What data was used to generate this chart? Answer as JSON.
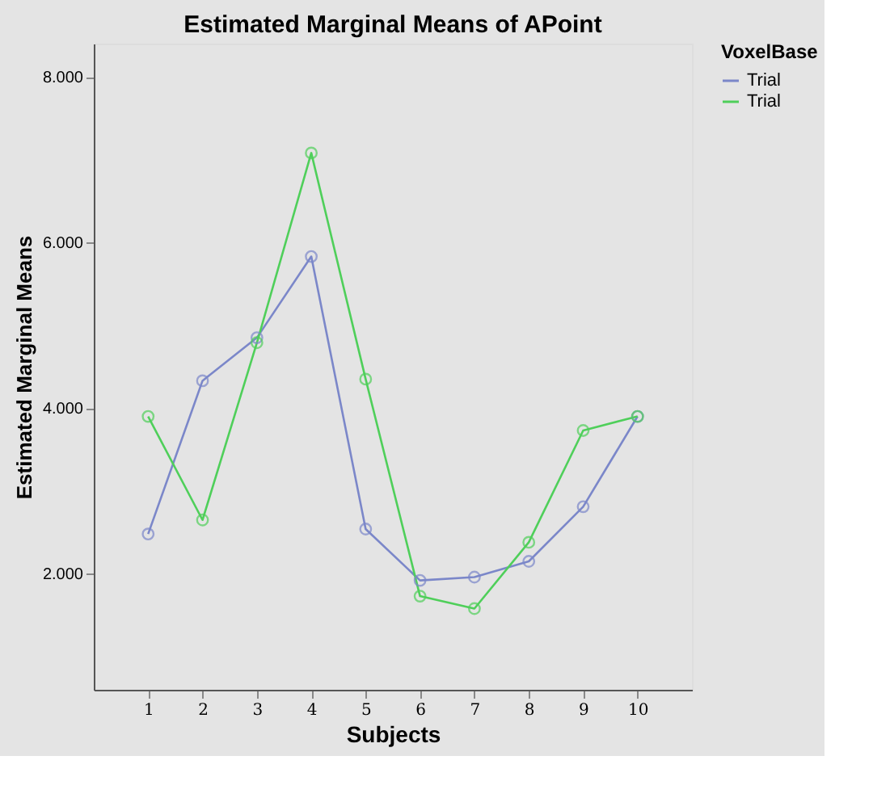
{
  "chart_data": {
    "type": "line",
    "title": "Estimated Marginal Means of APoint",
    "xlabel": "Subjects",
    "ylabel": "Estimated Marginal Means",
    "legend_title": "VoxelBase",
    "categories": [
      "1",
      "2",
      "3",
      "4",
      "5",
      "6",
      "7",
      "8",
      "9",
      "10"
    ],
    "series": [
      {
        "name": "Trial",
        "color": "#7b87c9",
        "values": [
          2.48,
          4.33,
          4.85,
          5.83,
          2.54,
          1.92,
          1.96,
          2.15,
          2.81,
          3.9
        ]
      },
      {
        "name": "Trial",
        "color": "#4fcf5a",
        "values": [
          3.9,
          2.65,
          4.79,
          7.08,
          4.35,
          1.73,
          1.58,
          2.38,
          3.73,
          3.9
        ]
      }
    ],
    "ylim": [
      0.6,
      8.4
    ],
    "yticks": [
      {
        "value": 2,
        "label": "2.000"
      },
      {
        "value": 4,
        "label": "4.000"
      },
      {
        "value": 6,
        "label": "6.000"
      },
      {
        "value": 8,
        "label": "8.000"
      }
    ],
    "grid": false,
    "legend": "top right",
    "marker": "circle",
    "line_style": "solid"
  }
}
